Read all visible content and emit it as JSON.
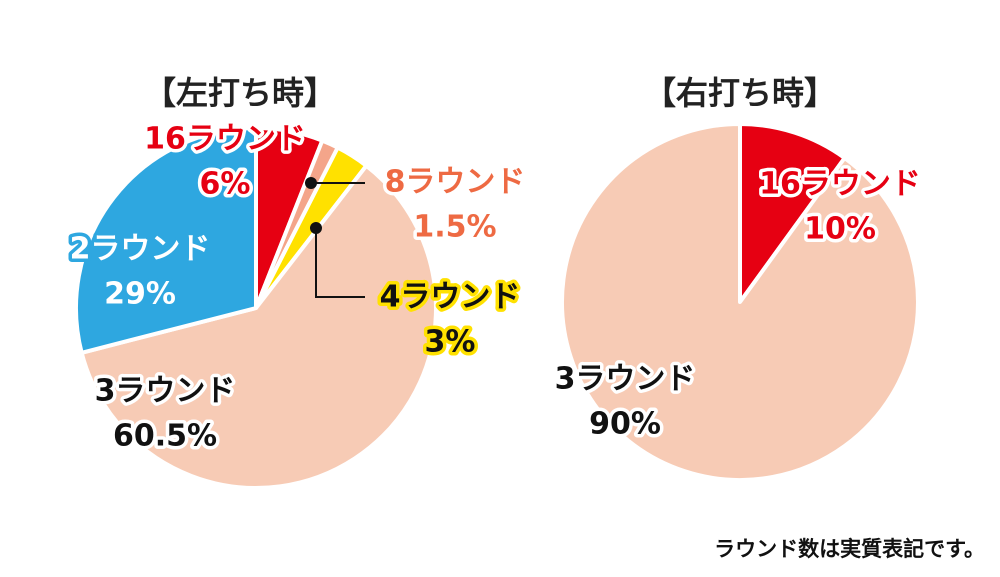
{
  "chart_data": [
    {
      "type": "pie",
      "title": "【左打ち時】",
      "categories": [
        "16ラウンド",
        "8ラウンド",
        "4ラウンド",
        "3ラウンド",
        "2ラウンド"
      ],
      "values": [
        6,
        1.5,
        3,
        60.5,
        29
      ],
      "value_labels": [
        "6%",
        "1.5%",
        "3%",
        "60.5%",
        "29%"
      ],
      "colors": [
        "#e60012",
        "#f4a58a",
        "#ffe100",
        "#f7cbb5",
        "#2ea7e0"
      ]
    },
    {
      "type": "pie",
      "title": "【右打ち時】",
      "categories": [
        "16ラウンド",
        "3ラウンド"
      ],
      "values": [
        10,
        90
      ],
      "value_labels": [
        "10%",
        "90%"
      ],
      "colors": [
        "#e60012",
        "#f7cbb5"
      ]
    }
  ],
  "note": "ラウンド数は実質表記です。"
}
